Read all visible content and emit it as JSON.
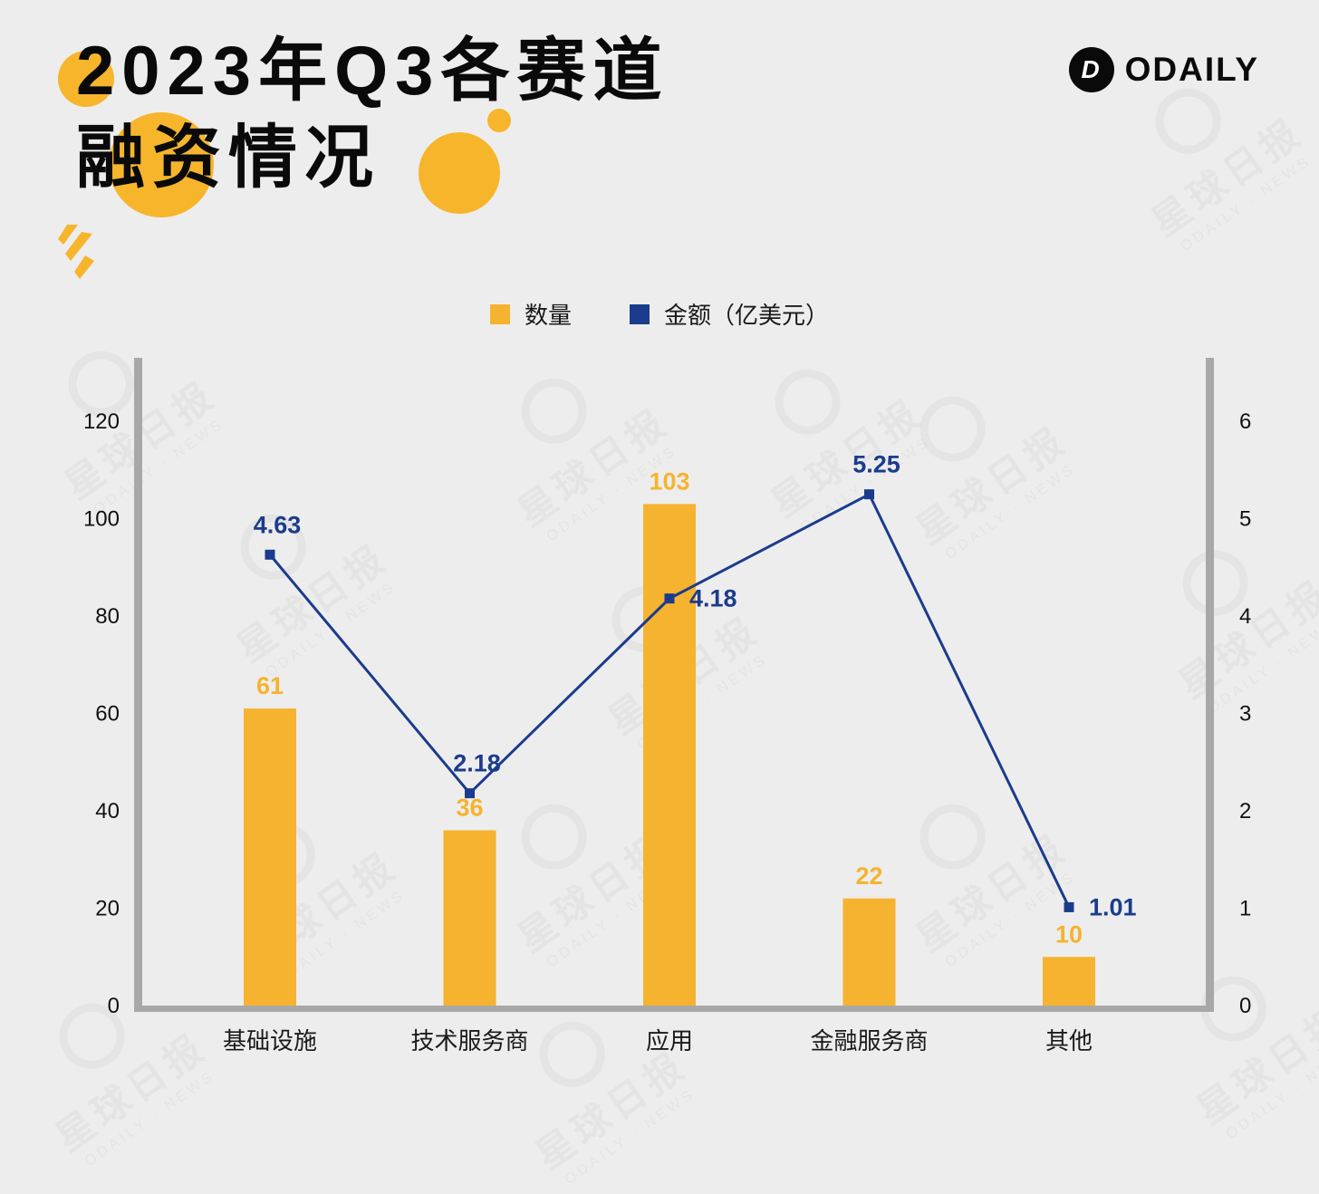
{
  "header": {
    "title_line1": "2023年Q3各赛道",
    "title_line2": "融资情况",
    "brand": "ODAILY",
    "brand_glyph": "D"
  },
  "legend": [
    {
      "label": "数量",
      "color": "#F5B32F"
    },
    {
      "label": "金额（亿美元）",
      "color": "#1B3C8C"
    }
  ],
  "watermark": {
    "line1": "星球日报",
    "line2": "ODAILY · NEWS"
  },
  "colors": {
    "background": "#EDEDED",
    "axis": "#A8A8A8",
    "bar": "#F5B32F",
    "line": "#1B3C8C",
    "text": "#111111"
  },
  "chart_data": {
    "type": "bar",
    "title": "2023年Q3各赛道融资情况",
    "categories": [
      "基础设施",
      "技术服务商",
      "应用",
      "金融服务商",
      "其他"
    ],
    "series": [
      {
        "name": "数量",
        "type": "bar",
        "axis": "left",
        "color": "#F5B32F",
        "values": [
          61,
          36,
          103,
          22,
          10
        ]
      },
      {
        "name": "金额（亿美元）",
        "type": "line",
        "axis": "right",
        "color": "#1B3C8C",
        "values": [
          4.63,
          2.18,
          4.18,
          5.25,
          1.01
        ]
      }
    ],
    "left_axis": {
      "min": 0,
      "max": 120,
      "step": 20
    },
    "right_axis": {
      "min": 0,
      "max": 6,
      "step": 1
    },
    "grid": false,
    "legend_position": "top-center",
    "label_positions": [
      "top",
      "top",
      "right",
      "top",
      "right"
    ]
  }
}
